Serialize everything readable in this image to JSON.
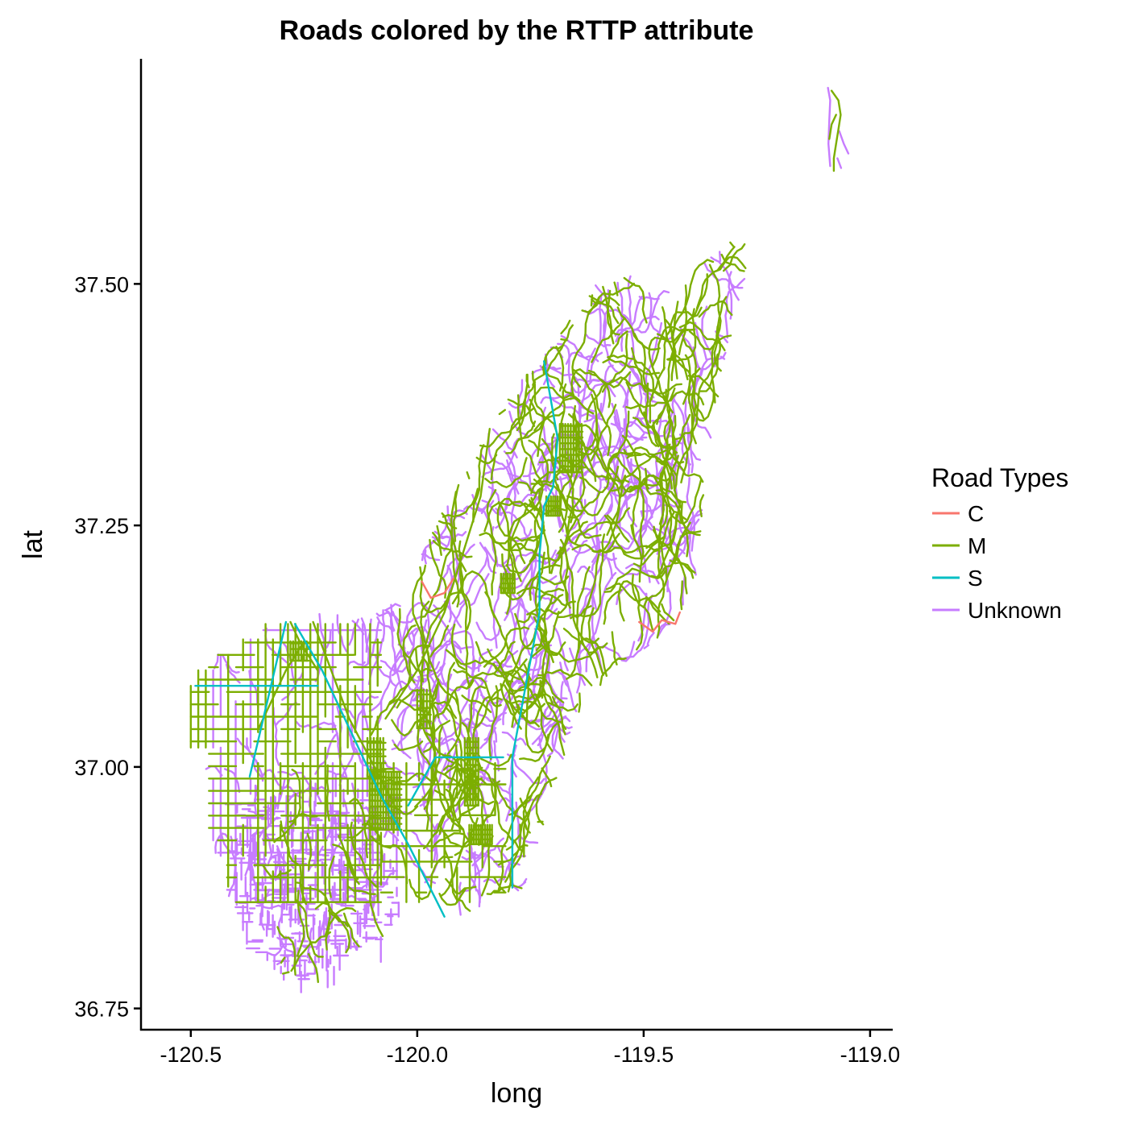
{
  "title": "Roads colored by the RTTP attribute",
  "chart_data": {
    "type": "line",
    "title": "Roads colored by the RTTP attribute",
    "xlabel": "long",
    "ylabel": "lat",
    "xlim": [
      -120.61,
      -118.95
    ],
    "ylim": [
      36.728,
      37.733
    ],
    "x_ticks": [
      {
        "value": -120.5,
        "label": "-120.5"
      },
      {
        "value": -120.0,
        "label": "-120.0"
      },
      {
        "value": -119.5,
        "label": "-119.5"
      },
      {
        "value": -119.0,
        "label": "-119.0"
      }
    ],
    "y_ticks": [
      {
        "value": 37.5,
        "label": "37.50"
      },
      {
        "value": 37.25,
        "label": "37.25"
      },
      {
        "value": 37.0,
        "label": "37.00"
      },
      {
        "value": 36.75,
        "label": "36.75"
      }
    ],
    "grid": false,
    "legend": {
      "title": "Road Types",
      "placement": "right",
      "entries": [
        {
          "key": "C",
          "label": "C",
          "color": "#F8766D"
        },
        {
          "key": "M",
          "label": "M",
          "color": "#7CAE00"
        },
        {
          "key": "S",
          "label": "S",
          "color": "#00BFC4"
        },
        {
          "key": "Unknown",
          "label": "Unknown",
          "color": "#C77CFF"
        }
      ]
    },
    "series": [
      {
        "key": "S",
        "color": "#00BFC4",
        "lines": [
          [
            [
              -120.27,
              37.148
            ],
            [
              -120.21,
              37.1
            ],
            [
              -120.15,
              37.04
            ],
            [
              -120.08,
              36.97
            ],
            [
              -120.02,
              36.92
            ],
            [
              -119.94,
              36.845
            ]
          ],
          [
            [
              -120.49,
              37.084
            ],
            [
              -120.22,
              37.084
            ]
          ],
          [
            [
              -120.29,
              37.15
            ],
            [
              -120.33,
              37.07
            ],
            [
              -120.37,
              36.99
            ]
          ],
          [
            [
              -120.02,
              36.96
            ],
            [
              -119.96,
              37.01
            ],
            [
              -119.81,
              37.01
            ]
          ],
          [
            [
              -119.79,
              37.01
            ],
            [
              -119.79,
              36.875
            ]
          ],
          [
            [
              -119.79,
              37.01
            ],
            [
              -119.77,
              37.06
            ],
            [
              -119.73,
              37.16
            ],
            [
              -119.73,
              37.22
            ],
            [
              -119.72,
              37.27
            ],
            [
              -119.7,
              37.29
            ],
            [
              -119.69,
              37.34
            ],
            [
              -119.72,
              37.42
            ]
          ]
        ]
      },
      {
        "key": "C",
        "color": "#F8766D",
        "lines": [
          [
            [
              -119.99,
              37.192
            ],
            [
              -119.97,
              37.175
            ],
            [
              -119.94,
              37.18
            ],
            [
              -119.92,
              37.195
            ]
          ],
          [
            [
              -119.51,
              37.15
            ],
            [
              -119.48,
              37.14
            ],
            [
              -119.46,
              37.152
            ],
            [
              -119.43,
              37.148
            ],
            [
              -119.42,
              37.16
            ]
          ]
        ]
      }
    ]
  }
}
